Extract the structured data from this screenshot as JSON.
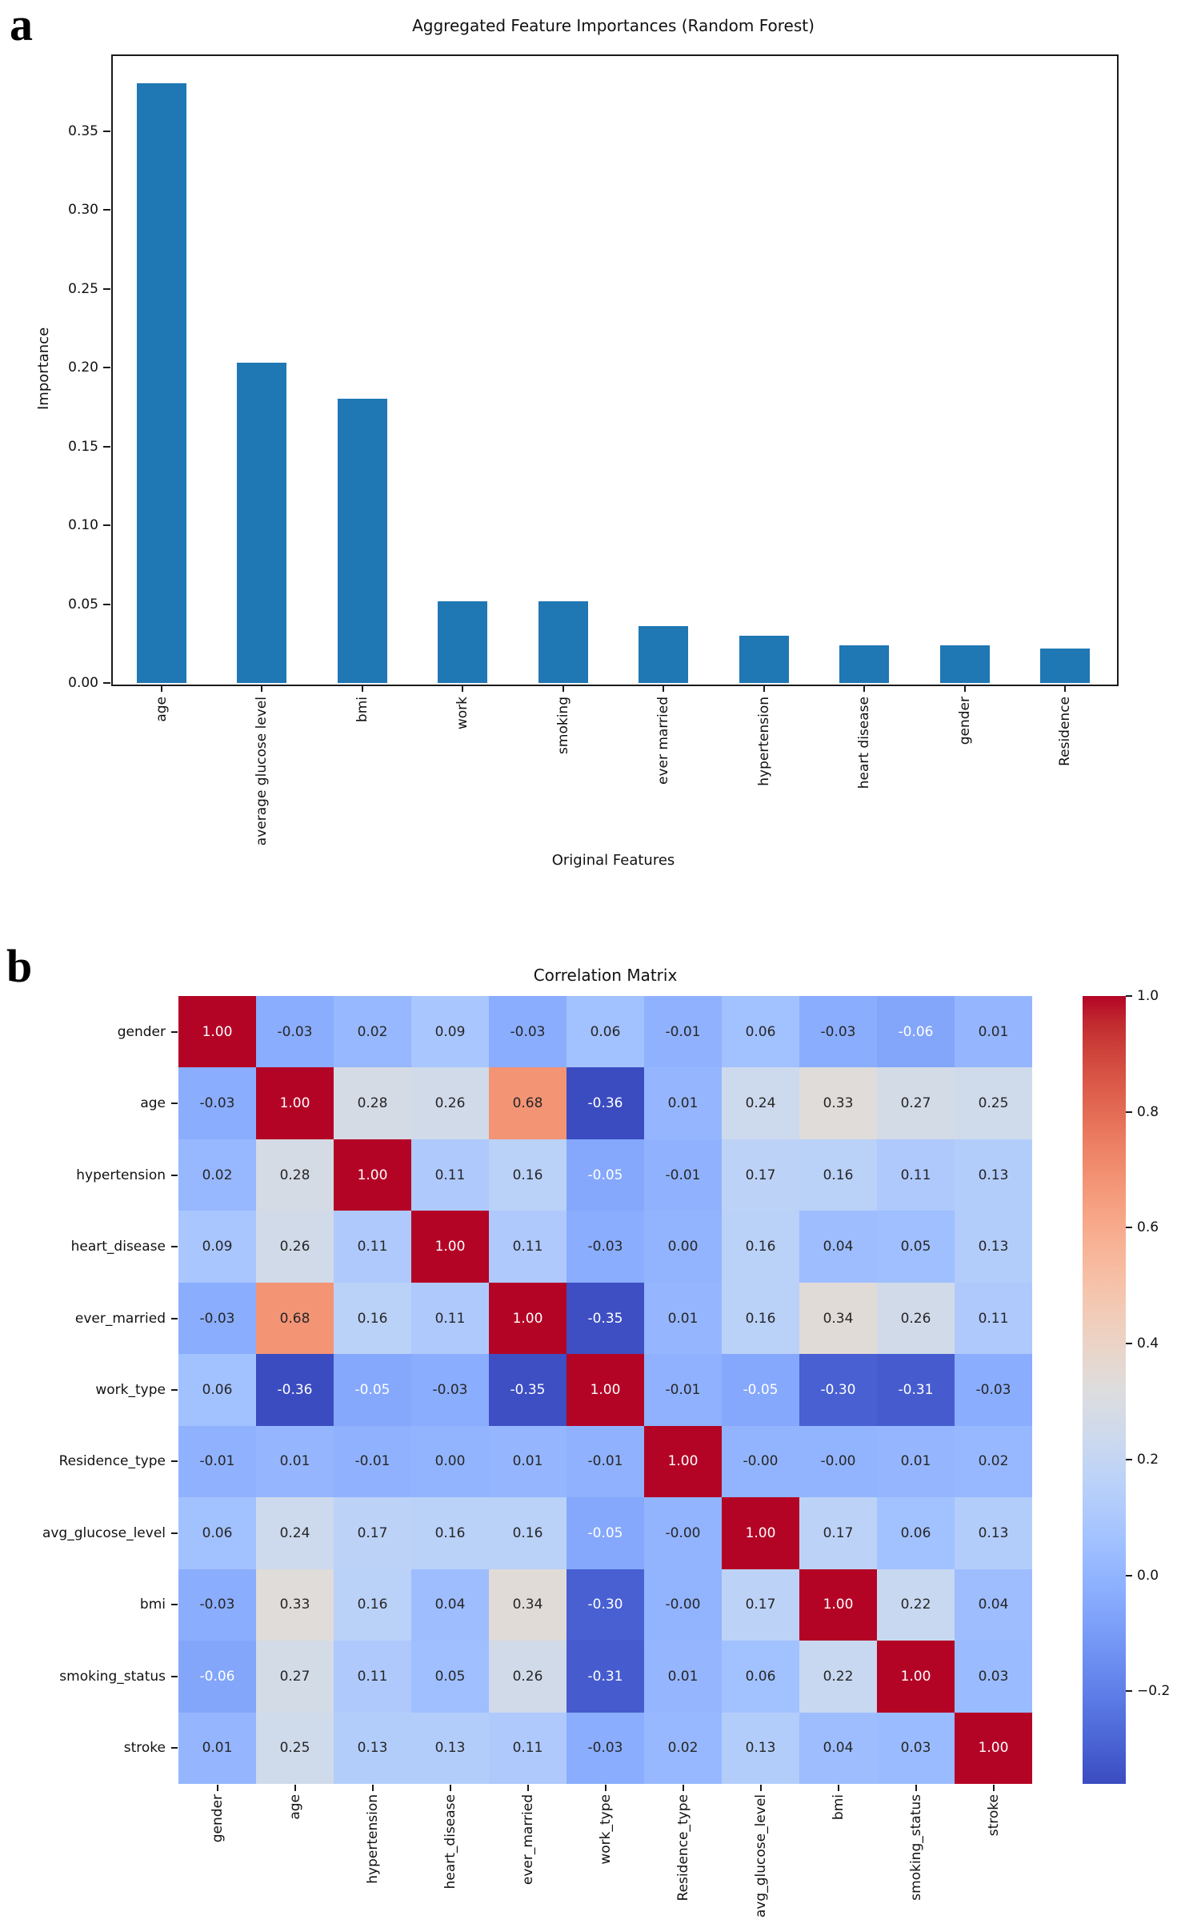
{
  "panels": {
    "a": "a",
    "b": "b"
  },
  "chart_data": [
    {
      "type": "bar",
      "title": "Aggregated Feature Importances (Random Forest)",
      "xlabel": "Original Features",
      "ylabel": "Importance",
      "categories": [
        "age",
        "average glucose level",
        "bmi",
        "work",
        "smoking",
        "ever married",
        "hypertension",
        "heart disease",
        "gender",
        "Residence"
      ],
      "values": [
        0.38,
        0.203,
        0.18,
        0.052,
        0.052,
        0.036,
        0.03,
        0.024,
        0.024,
        0.022
      ],
      "ytick_values": [
        0.0,
        0.05,
        0.1,
        0.15,
        0.2,
        0.25,
        0.3,
        0.35
      ],
      "ytick_labels": [
        "0.00",
        "0.05",
        "0.10",
        "0.15",
        "0.20",
        "0.25",
        "0.30",
        "0.35"
      ],
      "ylim": [
        0,
        0.3985
      ],
      "grid": false,
      "legend": "none",
      "bar_color": "#1f77b4"
    },
    {
      "type": "heatmap",
      "title": "Correlation Matrix",
      "labels": [
        "gender",
        "age",
        "hypertension",
        "heart_disease",
        "ever_married",
        "work_type",
        "Residence_type",
        "avg_glucose_level",
        "bmi",
        "smoking_status",
        "stroke"
      ],
      "matrix": [
        [
          "1.00",
          "-0.03",
          "0.02",
          "0.09",
          "-0.03",
          "0.06",
          "-0.01",
          "0.06",
          "-0.03",
          "-0.06",
          "0.01"
        ],
        [
          "-0.03",
          "1.00",
          "0.28",
          "0.26",
          "0.68",
          "-0.36",
          "0.01",
          "0.24",
          "0.33",
          "0.27",
          "0.25"
        ],
        [
          "0.02",
          "0.28",
          "1.00",
          "0.11",
          "0.16",
          "-0.05",
          "-0.01",
          "0.17",
          "0.16",
          "0.11",
          "0.13"
        ],
        [
          "0.09",
          "0.26",
          "0.11",
          "1.00",
          "0.11",
          "-0.03",
          "0.00",
          "0.16",
          "0.04",
          "0.05",
          "0.13"
        ],
        [
          "-0.03",
          "0.68",
          "0.16",
          "0.11",
          "1.00",
          "-0.35",
          "0.01",
          "0.16",
          "0.34",
          "0.26",
          "0.11"
        ],
        [
          "0.06",
          "-0.36",
          "-0.05",
          "-0.03",
          "-0.35",
          "1.00",
          "-0.01",
          "-0.05",
          "-0.30",
          "-0.31",
          "-0.03"
        ],
        [
          "-0.01",
          "0.01",
          "-0.01",
          "0.00",
          "0.01",
          "-0.01",
          "1.00",
          "-0.00",
          "-0.00",
          "0.01",
          "0.02"
        ],
        [
          "0.06",
          "0.24",
          "0.17",
          "0.16",
          "0.16",
          "-0.05",
          "-0.00",
          "1.00",
          "0.17",
          "0.06",
          "0.13"
        ],
        [
          "-0.03",
          "0.33",
          "0.16",
          "0.04",
          "0.34",
          "-0.30",
          "-0.00",
          "0.17",
          "1.00",
          "0.22",
          "0.04"
        ],
        [
          "-0.06",
          "0.27",
          "0.11",
          "0.05",
          "0.26",
          "-0.31",
          "0.01",
          "0.06",
          "0.22",
          "1.00",
          "0.03"
        ],
        [
          "0.01",
          "0.25",
          "0.13",
          "0.13",
          "0.11",
          "-0.03",
          "0.02",
          "0.13",
          "0.04",
          "0.03",
          "1.00"
        ]
      ],
      "vmin": -0.36,
      "vmax": 1.0,
      "colormap": "coolwarm",
      "colorbar_ticks": {
        "values": [
          1.0,
          0.8,
          0.6,
          0.4,
          0.2,
          0.0,
          -0.2
        ],
        "labels": [
          "1.0",
          "0.8",
          "0.6",
          "0.4",
          "0.2",
          "0.0",
          "−0.2"
        ]
      },
      "colors": {
        "cmap_min": "#3b4cc0",
        "cmap_mid": "#dddddd",
        "cmap_max": "#b40426",
        "annot_dark": "#262626",
        "annot_light": "#ffffff"
      }
    }
  ]
}
